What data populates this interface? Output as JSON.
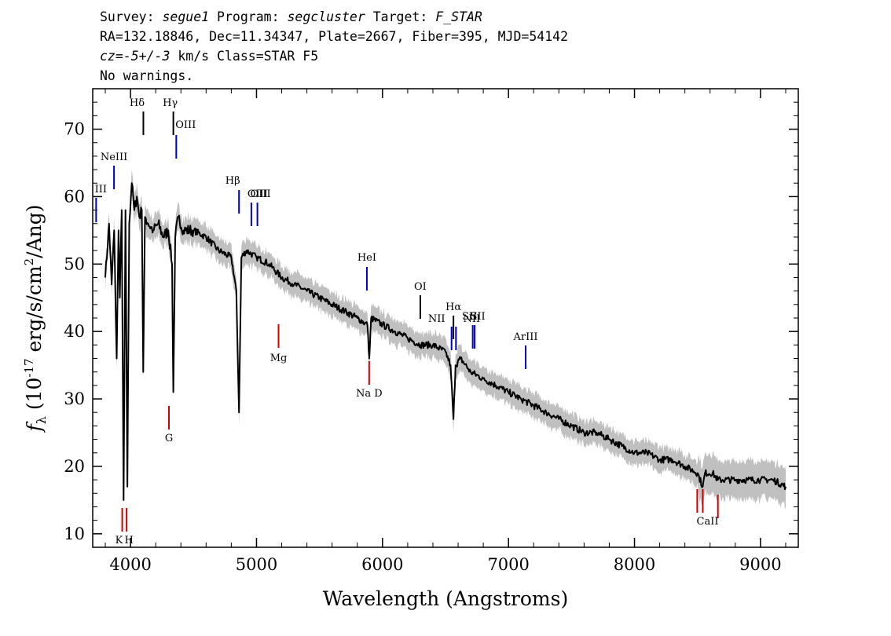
{
  "header": {
    "survey_label": "Survey:",
    "survey": "segue1",
    "program_label": "Program:",
    "program": "segcluster",
    "target_label": "Target:",
    "target": "F_STAR",
    "line2": "RA=132.18846, Dec=11.34347, Plate=2667, Fiber=395, MJD=54142",
    "cz_label": "cz=",
    "cz_value": "-5+/-3",
    "cz_rest": " km/s Class=STAR F5",
    "line4": "No warnings."
  },
  "chart_data": {
    "type": "line",
    "title": "",
    "xlabel": "Wavelength (Angstroms)",
    "ylabel": "f_λ (10^-17 erg/s/cm^2/Ang)",
    "xlim": [
      3700,
      9300
    ],
    "ylim": [
      8,
      76
    ],
    "xticks": [
      4000,
      5000,
      6000,
      7000,
      8000,
      9000
    ],
    "yticks": [
      10,
      20,
      30,
      40,
      50,
      60,
      70
    ],
    "grid": false,
    "series": [
      {
        "color": "#000000",
        "x": [
          3800,
          3830,
          3850,
          3870,
          3890,
          3905,
          3915,
          3930,
          3945,
          3960,
          3975,
          3990,
          4010,
          4030,
          4050,
          4070,
          4090,
          4101,
          4115,
          4140,
          4180,
          4220,
          4260,
          4300,
          4330,
          4340,
          4355,
          4380,
          4420,
          4500,
          4600,
          4700,
          4800,
          4840,
          4861,
          4880,
          4920,
          5000,
          5100,
          5200,
          5300,
          5400,
          5500,
          5600,
          5700,
          5800,
          5880,
          5895,
          5910,
          6000,
          6100,
          6200,
          6300,
          6400,
          6500,
          6540,
          6563,
          6580,
          6620,
          6700,
          6800,
          6900,
          7000,
          7100,
          7200,
          7300,
          7400,
          7500,
          7600,
          7700,
          7800,
          7900,
          8000,
          8100,
          8200,
          8300,
          8400,
          8500,
          8542,
          8560,
          8620,
          8662,
          8700,
          8800,
          8900,
          9000,
          9100,
          9200
        ],
        "y": [
          48,
          56,
          47,
          55,
          36,
          55,
          45,
          58,
          15,
          58,
          17,
          56,
          62,
          58,
          60,
          57,
          58,
          34,
          57,
          56,
          55,
          56,
          54,
          55,
          50,
          31,
          54,
          57,
          55,
          55,
          54,
          52,
          51,
          46,
          28,
          51,
          52,
          51,
          50,
          48,
          47,
          46,
          45,
          44,
          43,
          42,
          41,
          36,
          42,
          41,
          40,
          39,
          38,
          38,
          37,
          35,
          27,
          35,
          36,
          34,
          33,
          32,
          31,
          30,
          29,
          28,
          27,
          26,
          25,
          25,
          24,
          23,
          22,
          22,
          21,
          21,
          20,
          19,
          17,
          19,
          19,
          18,
          18,
          18,
          18,
          18,
          18,
          17
        ]
      }
    ],
    "error_band_color": "#c0c0c0",
    "emission_lines": [
      {
        "label": "NeIII",
        "wavelength": 3869,
        "color": "#0000cc"
      },
      {
        "label": "III",
        "wavelength": 3727,
        "color": "#0000cc"
      },
      {
        "label": "Hδ",
        "wavelength": 4102,
        "color": "#000000"
      },
      {
        "label": "Hγ",
        "wavelength": 4340,
        "color": "#000000"
      },
      {
        "label": "OIII",
        "wavelength": 4363,
        "color": "#0000cc"
      },
      {
        "label": "Hβ",
        "wavelength": 4861,
        "color": "#0000cc"
      },
      {
        "label": "OIII",
        "wavelength": 4959,
        "color": "#0000cc"
      },
      {
        "label": "OIII",
        "wavelength": 5007,
        "color": "#0000cc"
      },
      {
        "label": "HeI",
        "wavelength": 5876,
        "color": "#0000cc"
      },
      {
        "label": "OI",
        "wavelength": 6300,
        "color": "#000000"
      },
      {
        "label": "NII",
        "wavelength": 6548,
        "color": "#0000cc"
      },
      {
        "label": "Hα",
        "wavelength": 6563,
        "color": "#000000"
      },
      {
        "label": "NII",
        "wavelength": 6583,
        "color": "#0000cc"
      },
      {
        "label": "SII",
        "wavelength": 6716,
        "color": "#0000cc"
      },
      {
        "label": "SII",
        "wavelength": 6731,
        "color": "#0000cc"
      },
      {
        "label": "ArIII",
        "wavelength": 7136,
        "color": "#0000cc"
      }
    ],
    "absorption_lines": [
      {
        "label": "K",
        "wavelength": 3934,
        "color": "#cc0000"
      },
      {
        "label": "H",
        "wavelength": 3969,
        "color": "#cc0000"
      },
      {
        "label": "G",
        "wavelength": 4305,
        "color": "#cc0000"
      },
      {
        "label": "Mg",
        "wavelength": 5175,
        "color": "#cc0000"
      },
      {
        "label": "Na D",
        "wavelength": 5894,
        "color": "#cc0000"
      },
      {
        "label": "CaII",
        "wavelength": 8498,
        "color": "#cc0000"
      },
      {
        "label": "CaII",
        "wavelength": 8542,
        "color": "#cc0000"
      },
      {
        "label": "CaII",
        "wavelength": 8662,
        "color": "#cc0000"
      }
    ]
  }
}
